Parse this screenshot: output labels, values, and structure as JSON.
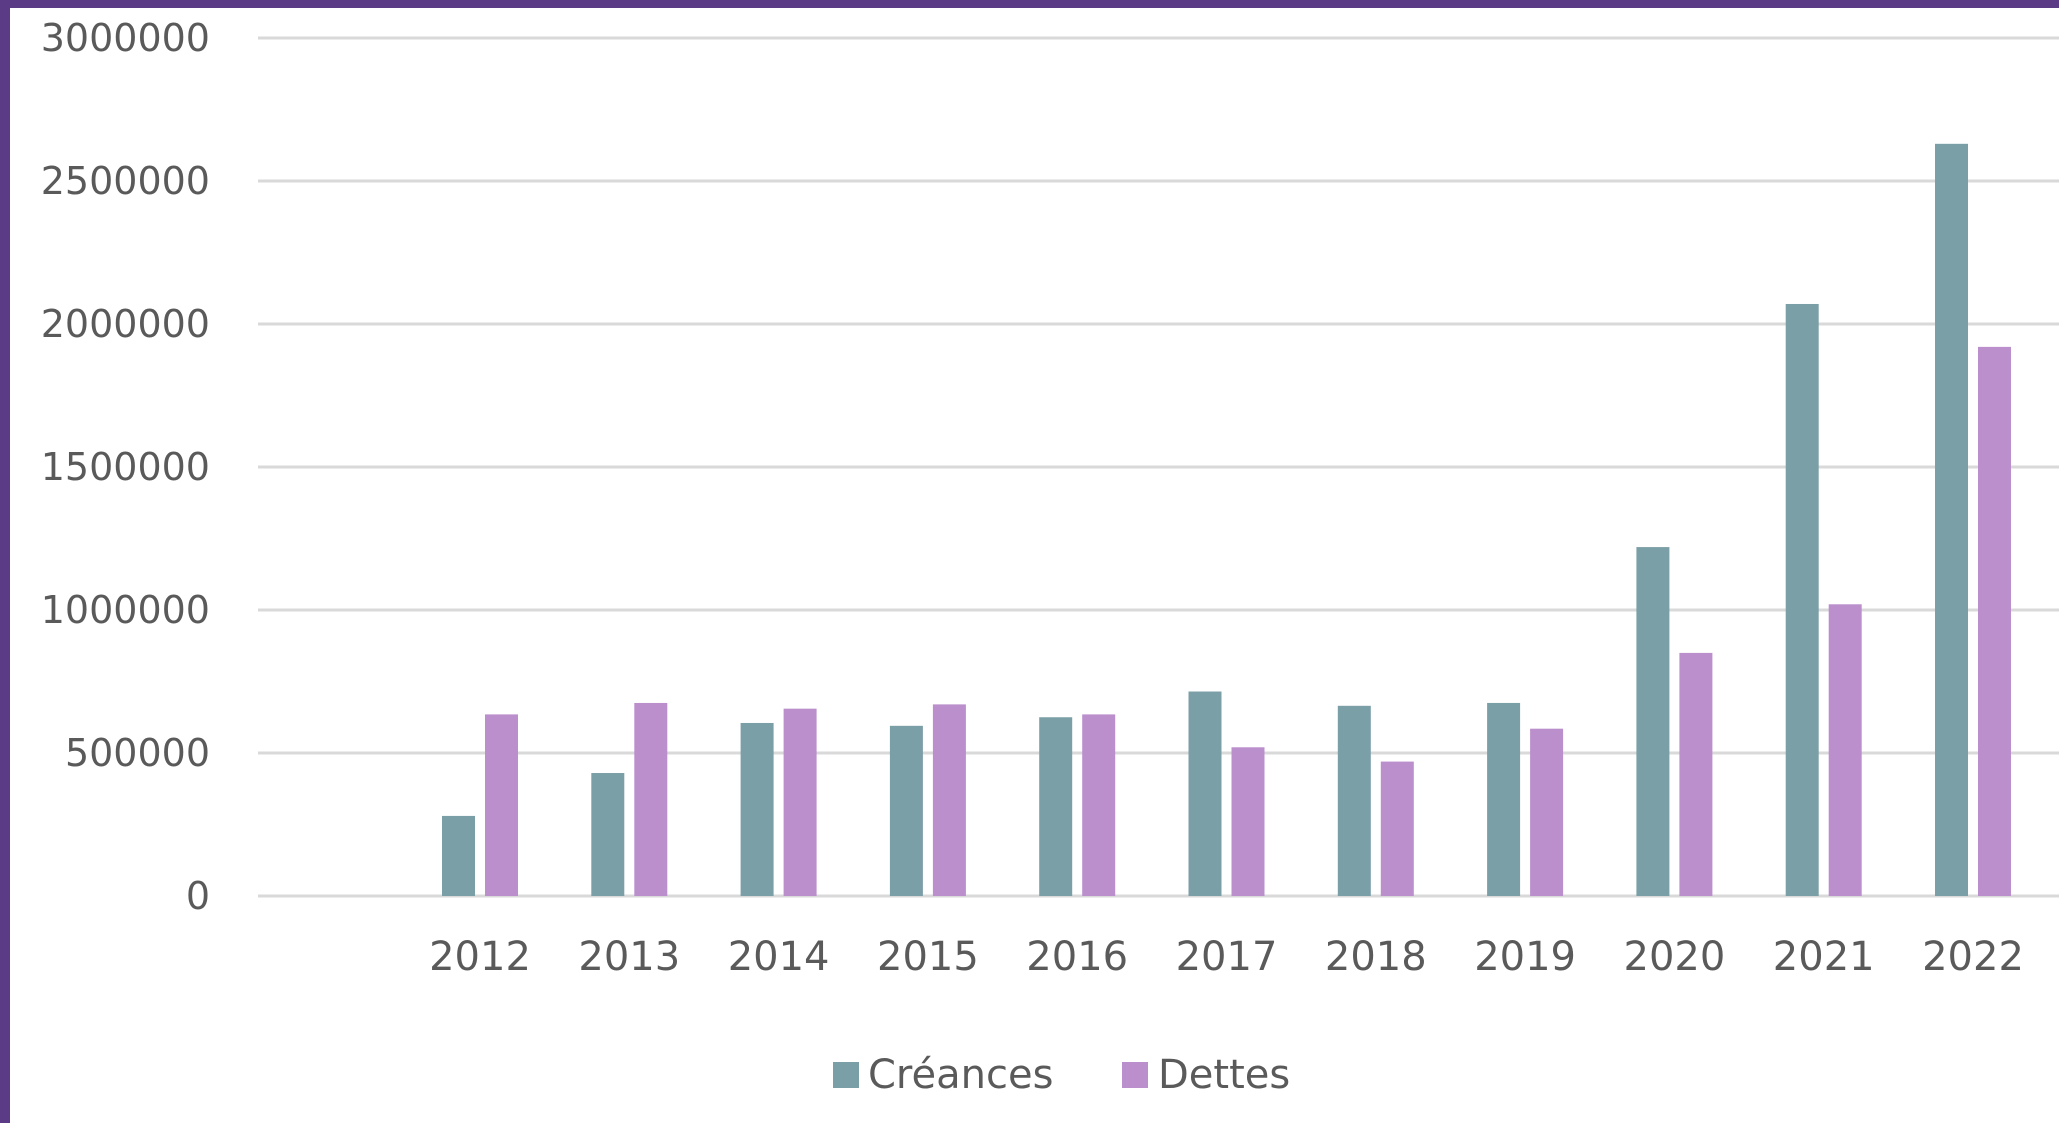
{
  "chart_data": {
    "type": "bar",
    "title": "",
    "xlabel": "",
    "ylabel": "",
    "categories": [
      "2012",
      "2013",
      "2014",
      "2015",
      "2016",
      "2017",
      "2018",
      "2019",
      "2020",
      "2021",
      "2022"
    ],
    "series": [
      {
        "name": "Créances",
        "color": "#7b9fa6",
        "values": [
          280000,
          430000,
          605000,
          595000,
          625000,
          715000,
          665000,
          675000,
          1220000,
          2070000,
          2630000
        ]
      },
      {
        "name": "Dettes",
        "color": "#bb8fcc",
        "values": [
          635000,
          675000,
          655000,
          670000,
          635000,
          520000,
          470000,
          585000,
          850000,
          1020000,
          1920000
        ]
      }
    ],
    "ylim": [
      0,
      3000000
    ],
    "yticks": [
      "0",
      "500000",
      "1000000",
      "1500000",
      "2000000",
      "2500000",
      "3000000"
    ],
    "grid": true,
    "legend": "bottom-center",
    "colors": {
      "gridline": "#d9d9d9",
      "frame": "#5b3a86",
      "tick_text": "#5a5a5a"
    }
  }
}
